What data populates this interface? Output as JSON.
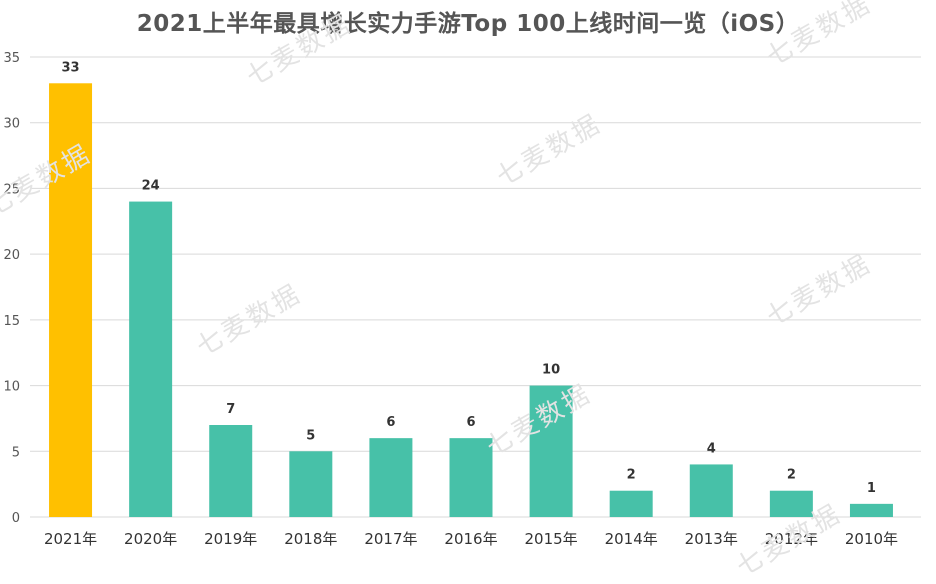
{
  "chart_data": {
    "type": "bar",
    "title": "2021上半年最具增长实力手游Top 100上线时间一览（iOS）",
    "categories": [
      "2021年",
      "2020年",
      "2019年",
      "2018年",
      "2017年",
      "2016年",
      "2015年",
      "2014年",
      "2013年",
      "2012年",
      "2010年"
    ],
    "values": [
      33,
      24,
      7,
      5,
      6,
      6,
      10,
      2,
      4,
      2,
      1
    ],
    "ylim": [
      0,
      35
    ],
    "yticks": [
      0,
      5,
      10,
      15,
      20,
      25,
      30,
      35
    ],
    "grid": true,
    "highlight_index": 0,
    "colors": {
      "highlight": "#FFC000",
      "bar": "#47C1A8"
    }
  },
  "watermark": "七麦数据"
}
